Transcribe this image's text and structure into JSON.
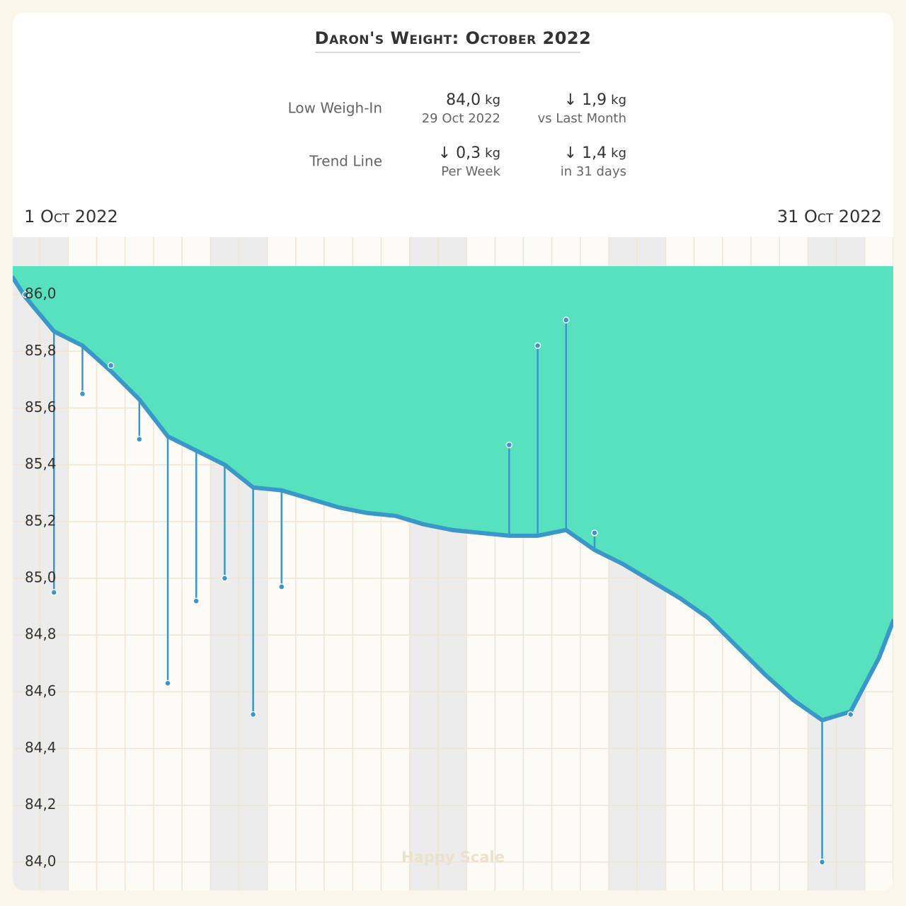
{
  "header": {
    "title": "Daron's Weight: October 2022"
  },
  "stats": {
    "low_weigh_in": {
      "label": "Low Weigh-In",
      "value": "84,0",
      "unit": "kg",
      "note": "29 Oct 2022",
      "change": "↓ 1,9",
      "change_unit": "kg",
      "change_note": "vs Last Month"
    },
    "trend_line": {
      "label": "Trend Line",
      "value": "↓ 0,3",
      "unit": "kg",
      "note": "Per Week",
      "change": "↓ 1,4",
      "change_unit": "kg",
      "change_note": "in 31 days"
    }
  },
  "watermark": "Happy Scale",
  "chart_data": {
    "type": "line",
    "xlim": [
      0.55,
      31.5
    ],
    "xticks": [
      {
        "value": 1,
        "label": "1 Oct 2022"
      },
      {
        "value": 31,
        "label": "31 Oct 2022"
      }
    ],
    "ylim": [
      83.9,
      86.1
    ],
    "yticks": [
      {
        "value": 84,
        "label": "84,0"
      },
      {
        "value": 84.2,
        "label": "84,2"
      },
      {
        "value": 84.4,
        "label": "84,4"
      },
      {
        "value": 84.6,
        "label": "84,6"
      },
      {
        "value": 84.8,
        "label": "84,8"
      },
      {
        "value": 85,
        "label": "85,0"
      },
      {
        "value": 85.2,
        "label": "85,2"
      },
      {
        "value": 85.4,
        "label": "85,4"
      },
      {
        "value": 85.6,
        "label": "85,6"
      },
      {
        "value": 85.8,
        "label": "85,8"
      },
      {
        "value": 86,
        "label": "86,0"
      }
    ],
    "grid": true,
    "series": [
      {
        "color": "#3a97c9",
        "fill": "#57e1be",
        "x": [
          0.55,
          1,
          2,
          3,
          4,
          5,
          6,
          7,
          8,
          9,
          10,
          11,
          12,
          13,
          14,
          15,
          16,
          17,
          18,
          19,
          20,
          21,
          22,
          23,
          24,
          25,
          26,
          27,
          28,
          29,
          30,
          31,
          31.5
        ],
        "values": [
          86.06,
          85.99,
          85.87,
          85.82,
          85.73,
          85.63,
          85.5,
          85.45,
          85.4,
          85.32,
          85.31,
          85.28,
          85.25,
          85.23,
          85.22,
          85.19,
          85.17,
          85.16,
          85.15,
          85.15,
          85.17,
          85.1,
          85.05,
          84.99,
          84.93,
          84.86,
          84.76,
          84.66,
          84.57,
          84.5,
          84.53,
          84.72,
          84.85
        ]
      },
      {
        "color": "#3a97c9",
        "stems": true,
        "x": [
          1,
          2,
          3,
          4,
          5,
          6,
          7,
          8,
          9,
          10,
          18,
          19,
          20,
          21,
          29,
          30
        ],
        "values": [
          86.0,
          84.95,
          85.65,
          85.75,
          85.49,
          84.63,
          84.92,
          85.0,
          84.52,
          84.97,
          85.47,
          85.82,
          85.91,
          85.16,
          84.0,
          84.52
        ]
      }
    ]
  }
}
